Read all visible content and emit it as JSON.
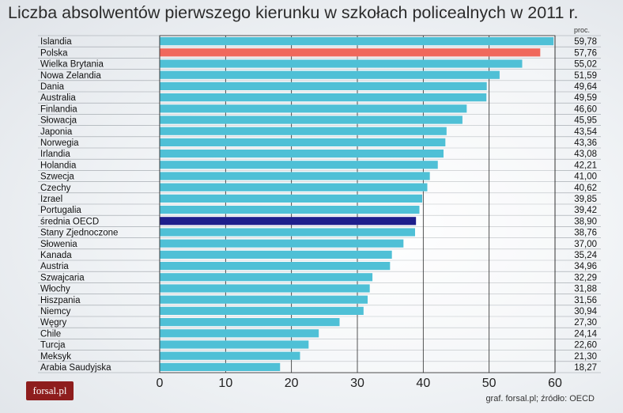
{
  "chart_data": {
    "type": "bar",
    "orientation": "horizontal",
    "title": "Liczba absolwentów pierwszego kierunku w szkołach policealnych w 2011 r.",
    "unit_label": "proc.",
    "xlim": [
      0,
      60
    ],
    "x_ticks": [
      0,
      10,
      20,
      30,
      40,
      50,
      60
    ],
    "grid": true,
    "categories": [
      "Islandia",
      "Polska",
      "Wielka Brytania",
      "Nowa Zelandia",
      "Dania",
      "Australia",
      "Finlandia",
      "Słowacja",
      "Japonia",
      "Norwegia",
      "Irlandia",
      "Holandia",
      "Szwecja",
      "Czechy",
      "Izrael",
      "Portugalia",
      "średnia OECD",
      "Stany Zjednoczone",
      "Słowenia",
      "Kanada",
      "Austria",
      "Szwajcaria",
      "Włochy",
      "Hiszpania",
      "Niemcy",
      "Węgry",
      "Chile",
      "Turcja",
      "Meksyk",
      "Arabia Saudyjska"
    ],
    "values": [
      59.78,
      57.76,
      55.02,
      51.59,
      49.64,
      49.59,
      46.6,
      45.95,
      43.54,
      43.36,
      43.08,
      42.21,
      41.0,
      40.62,
      39.85,
      39.42,
      38.9,
      38.76,
      37.0,
      35.24,
      34.96,
      32.29,
      31.88,
      31.56,
      30.94,
      27.3,
      24.14,
      22.6,
      21.3,
      18.27
    ],
    "value_labels": [
      "59,78",
      "57,76",
      "55,02",
      "51,59",
      "49,64",
      "49,59",
      "46,60",
      "45,95",
      "43,54",
      "43,36",
      "43,08",
      "42,21",
      "41,00",
      "40,62",
      "39,85",
      "39,42",
      "38,90",
      "38,76",
      "37,00",
      "35,24",
      "34,96",
      "32,29",
      "31,88",
      "31,56",
      "30,94",
      "27,30",
      "24,14",
      "22,60",
      "21,30",
      "18,27"
    ],
    "highlight": {
      "Polska": "#f0685c",
      "średnia OECD": "#1e1f8c"
    },
    "default_color": "#4fc0d6"
  },
  "logo_text": "forsal.pl",
  "source_text": "graf. forsal.pl; źródło: OECD"
}
